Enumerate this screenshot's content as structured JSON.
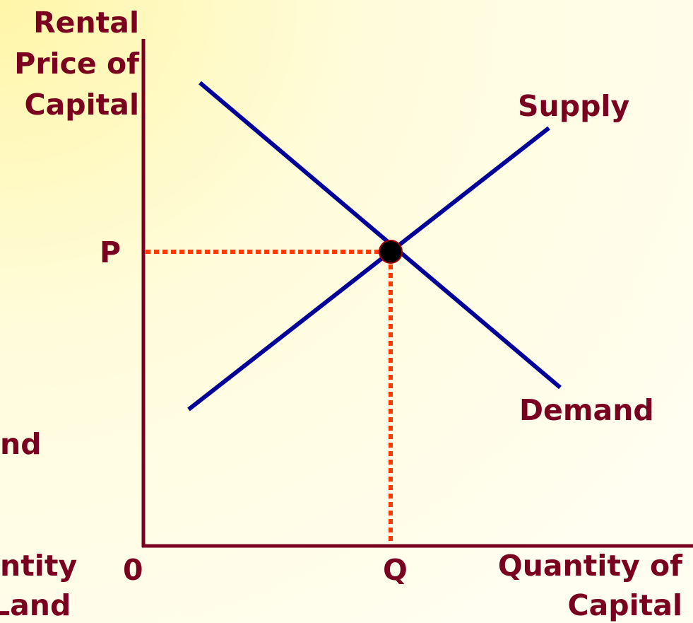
{
  "y_axis_label": [
    "Rental",
    "Price of",
    "Capital"
  ],
  "curves": {
    "supply": "Supply",
    "demand": "Demand"
  },
  "price_label": "P",
  "origin_label": "0",
  "quantity_label": "Q",
  "x_axis_label": [
    "Quantity of",
    "Capital"
  ],
  "clipped_left": {
    "label_1": "nd",
    "label_2": "ntity",
    "label_3": "Land"
  }
}
